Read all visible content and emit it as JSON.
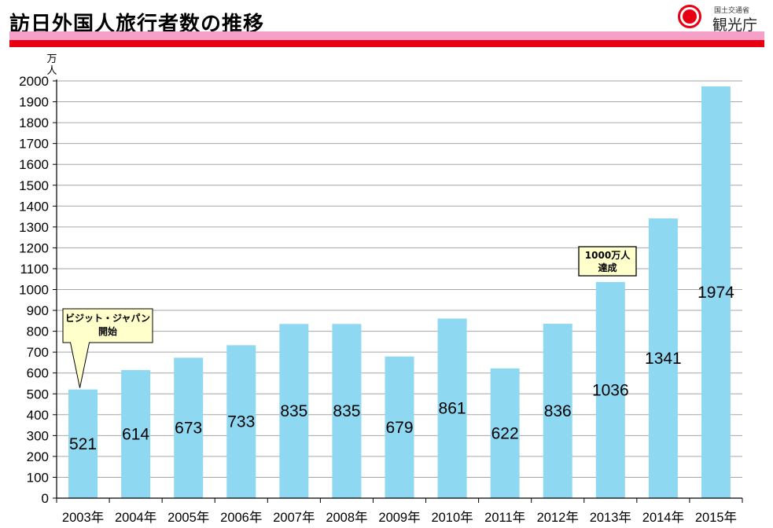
{
  "header": {
    "title": "訪日外国人旅行者数の推移",
    "logo_ministry": "国土交通省",
    "logo_agency": "観光庁"
  },
  "colors": {
    "bar": "#8fd8f2",
    "pink_band": "#f4a0c8",
    "red_band": "#e60012",
    "grid": "#a6a6a6",
    "callout_fill": "#ffffcc"
  },
  "chart_data": {
    "type": "bar",
    "title": "訪日外国人旅行者数の推移",
    "ylabel": "万人",
    "ylim": [
      0,
      2000
    ],
    "ytick_step": 100,
    "yticks": [
      "0",
      "100",
      "200",
      "300",
      "400",
      "500",
      "600",
      "700",
      "800",
      "900",
      "1000",
      "1100",
      "1200",
      "1300",
      "1400",
      "1500",
      "1600",
      "1700",
      "1800",
      "1900",
      "2000"
    ],
    "categories": [
      "2003年",
      "2004年",
      "2005年",
      "2006年",
      "2007年",
      "2008年",
      "2009年",
      "2010年",
      "2011年",
      "2012年",
      "2013年",
      "2014年",
      "2015年"
    ],
    "values": [
      521,
      614,
      673,
      733,
      835,
      835,
      679,
      861,
      622,
      836,
      1036,
      1341,
      1974
    ],
    "data_labels": [
      "521",
      "614",
      "673",
      "733",
      "835",
      "835",
      "679",
      "861",
      "622",
      "836",
      "1036",
      "1341",
      "1974"
    ],
    "grid": true,
    "annotations": [
      {
        "category": "2003年",
        "lines": [
          "ビジット・ジャパン",
          "開始"
        ]
      },
      {
        "category": "2013年",
        "lines": [
          "1000万人",
          "達成"
        ]
      }
    ]
  }
}
